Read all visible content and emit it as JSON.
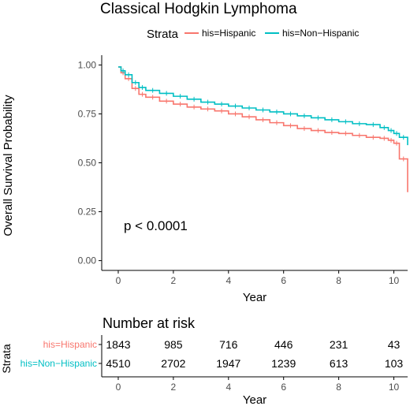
{
  "colors": {
    "hispanic": "#F8766D",
    "non_hispanic": "#00BFC4",
    "axis": "#000000"
  },
  "chart_data": [
    {
      "type": "line",
      "subtype": "kaplan-meier",
      "title": "Classical Hodgkin Lymphoma",
      "xlabel": "Year",
      "ylabel": "Overall Survival Probability",
      "xlim": [
        -0.6,
        10.5
      ],
      "ylim": [
        -0.05,
        1.05
      ],
      "xticks": [
        0,
        2,
        4,
        6,
        8,
        10
      ],
      "yticks": [
        0.0,
        0.25,
        0.5,
        0.75,
        1.0
      ],
      "ytick_labels": [
        "0.00",
        "0.25",
        "0.50",
        "0.75",
        "1.00"
      ],
      "grid": false,
      "legend": {
        "title": "Strata",
        "position": "top"
      },
      "annotation": "p < 0.0001",
      "series": [
        {
          "name": "his=Hispanic",
          "color": "#F8766D",
          "x": [
            0,
            0.1,
            0.25,
            0.5,
            0.75,
            1,
            1.5,
            2,
            2.5,
            3,
            3.5,
            4,
            4.5,
            5,
            5.5,
            6,
            6.5,
            7,
            7.5,
            8,
            8.5,
            9,
            9.5,
            9.8,
            10,
            10.2,
            10.5
          ],
          "y": [
            0.99,
            0.96,
            0.93,
            0.88,
            0.85,
            0.835,
            0.815,
            0.8,
            0.785,
            0.775,
            0.765,
            0.75,
            0.735,
            0.72,
            0.705,
            0.69,
            0.675,
            0.665,
            0.655,
            0.65,
            0.64,
            0.63,
            0.625,
            0.615,
            0.6,
            0.52,
            0.35
          ]
        },
        {
          "name": "his=Non−Hispanic",
          "color": "#00BFC4",
          "x": [
            0,
            0.1,
            0.25,
            0.5,
            0.75,
            1,
            1.5,
            2,
            2.5,
            3,
            3.5,
            4,
            4.5,
            5,
            5.5,
            6,
            6.5,
            7,
            7.5,
            8,
            8.5,
            9,
            9.5,
            9.8,
            10,
            10.2,
            10.5
          ],
          "y": [
            0.99,
            0.97,
            0.95,
            0.91,
            0.885,
            0.87,
            0.855,
            0.84,
            0.825,
            0.81,
            0.8,
            0.79,
            0.78,
            0.77,
            0.76,
            0.75,
            0.74,
            0.73,
            0.72,
            0.71,
            0.7,
            0.695,
            0.68,
            0.665,
            0.65,
            0.63,
            0.59
          ]
        }
      ]
    },
    {
      "type": "table",
      "title": "Number at risk",
      "row_axis_label": "Strata",
      "xlabel": "Year",
      "xticks": [
        0,
        2,
        4,
        6,
        8,
        10
      ],
      "rows": [
        {
          "name": "his=Hispanic",
          "color": "#F8766D",
          "values": [
            1843,
            985,
            716,
            446,
            231,
            43
          ]
        },
        {
          "name": "his=Non−Hispanic",
          "color": "#00BFC4",
          "values": [
            4510,
            2702,
            1947,
            1239,
            613,
            103
          ]
        }
      ]
    }
  ]
}
